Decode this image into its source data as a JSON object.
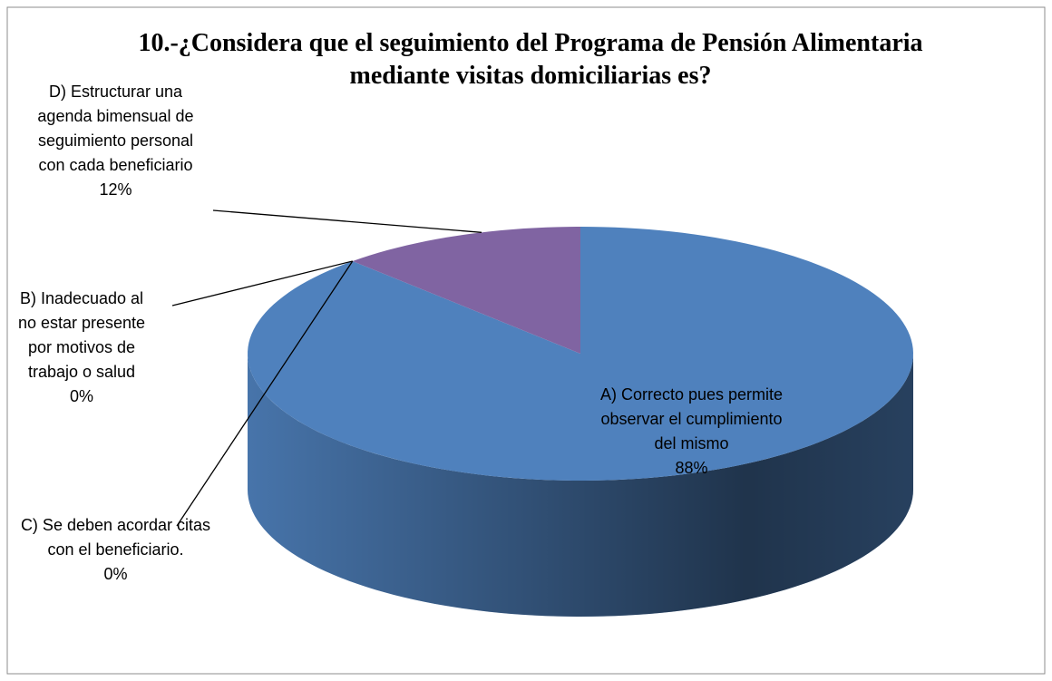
{
  "chart_data": {
    "type": "pie",
    "title": "10.-¿Considera que el seguimiento del Programa de Pensión Alimentaria mediante visitas domiciliarias es?",
    "categories": [
      "A) Correcto pues permite observar el cumplimiento del mismo",
      "B) Inadecuado al no estar presente por motivos de trabajo o salud",
      "C) Se deben acordar citas con el beneficiario.",
      "D) Estructurar una agenda bimensual de seguimiento personal con cada beneficiario"
    ],
    "values": [
      88,
      0,
      0,
      12
    ],
    "value_labels": [
      "88%",
      "0%",
      "0%",
      "12%"
    ],
    "colors": [
      "#4f81bd",
      "#c0504d",
      "#9bbb59",
      "#8064a2"
    ]
  }
}
